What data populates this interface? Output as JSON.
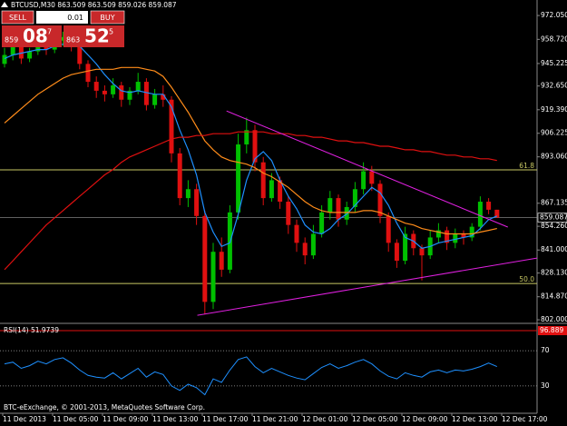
{
  "chart_data": {
    "type": "candlestick",
    "title": "BTCUSD,M30 863.509 863.509 859.026 859.087",
    "trade_panel": {
      "sell": "SELL",
      "buy": "BUY",
      "lot": "0.01",
      "bid": {
        "big": "859",
        "pips": "08",
        "frac": "7"
      },
      "ask": {
        "big": "863",
        "pips": "52",
        "frac": "5"
      }
    },
    "copyright": "BTC-eExchange, © 2001-2013, MetaQuotes Software Corp.",
    "ylim": [
      800,
      979.7
    ],
    "yticks": [
      {
        "value": 972.05,
        "label": "972.050"
      },
      {
        "value": 958.72,
        "label": "958.720"
      },
      945.225,
      {
        "value": 932.65,
        "label": "932.650"
      },
      {
        "value": 919.39,
        "label": "919.390"
      },
      906.225,
      {
        "value": 893.06,
        "label": "893.060"
      },
      867.135,
      {
        "value": 854.26,
        "label": "854.260"
      },
      {
        "value": 841.0,
        "label": "841.000"
      },
      {
        "value": 828.13,
        "label": "828.130"
      },
      {
        "value": 814.87,
        "label": "814.870"
      },
      {
        "value": 802.0,
        "label": "802.000"
      }
    ],
    "x_labels": [
      "11 Dec 2013",
      "11 Dec 05:00",
      "11 Dec 09:00",
      "11 Dec 13:00",
      "11 Dec 17:00",
      "11 Dec 21:00",
      "12 Dec 01:00",
      "12 Dec 05:00",
      "12 Dec 09:00",
      "12 Dec 13:00",
      "12 Dec 17:00"
    ],
    "bull_color": "#00c000",
    "bear_color": "#e01010",
    "candles": [
      [
        945,
        954,
        943,
        950
      ],
      [
        950,
        958,
        947,
        955
      ],
      [
        955,
        957,
        945,
        948
      ],
      [
        948,
        954,
        946,
        952
      ],
      [
        952,
        959,
        950,
        956
      ],
      [
        956,
        958,
        950,
        953
      ],
      [
        953,
        961,
        951,
        958
      ],
      [
        958,
        963,
        955,
        960
      ],
      [
        960,
        962,
        952,
        955
      ],
      [
        955,
        957,
        942,
        945
      ],
      [
        945,
        947,
        932,
        935
      ],
      [
        935,
        938,
        926,
        930
      ],
      [
        930,
        933,
        924,
        928
      ],
      [
        928,
        937,
        926,
        933
      ],
      [
        933,
        935,
        921,
        925
      ],
      [
        925,
        932,
        922,
        930
      ],
      [
        930,
        940,
        928,
        935
      ],
      [
        935,
        937,
        919,
        922
      ],
      [
        922,
        931,
        920,
        928
      ],
      [
        928,
        933,
        921,
        925
      ],
      [
        925,
        927,
        890,
        895
      ],
      [
        895,
        898,
        866,
        870
      ],
      [
        870,
        880,
        865,
        875
      ],
      [
        875,
        878,
        855,
        860
      ],
      [
        860,
        863,
        805,
        812
      ],
      [
        812,
        845,
        808,
        840
      ],
      [
        840,
        848,
        826,
        830
      ],
      [
        830,
        866,
        828,
        862
      ],
      [
        862,
        906,
        858,
        900
      ],
      [
        900,
        915,
        895,
        908
      ],
      [
        908,
        911,
        885,
        890
      ],
      [
        890,
        893,
        866,
        870
      ],
      [
        870,
        884,
        868,
        880
      ],
      [
        880,
        882,
        864,
        868
      ],
      [
        868,
        871,
        850,
        855
      ],
      [
        855,
        858,
        840,
        845
      ],
      [
        845,
        848,
        833,
        838
      ],
      [
        838,
        855,
        836,
        850
      ],
      [
        850,
        866,
        848,
        862
      ],
      [
        862,
        874,
        858,
        870
      ],
      [
        870,
        872,
        854,
        858
      ],
      [
        858,
        868,
        855,
        865
      ],
      [
        865,
        879,
        862,
        875
      ],
      [
        875,
        890,
        872,
        885
      ],
      [
        885,
        888,
        874,
        878
      ],
      [
        878,
        880,
        856,
        860
      ],
      [
        860,
        862,
        840,
        845
      ],
      [
        845,
        847,
        831,
        835
      ],
      [
        835,
        854,
        833,
        850
      ],
      [
        850,
        852,
        838,
        842
      ],
      [
        842,
        844,
        824,
        838
      ],
      [
        838,
        852,
        836,
        848
      ],
      [
        848,
        856,
        845,
        852
      ],
      [
        852,
        854,
        841,
        845
      ],
      [
        845,
        853,
        842,
        850
      ],
      [
        850,
        852,
        844,
        848
      ],
      [
        848,
        856,
        846,
        854
      ],
      [
        854,
        871,
        852,
        868
      ],
      [
        868,
        870,
        861,
        863.509
      ],
      [
        863.509,
        863.509,
        859.026,
        859.087
      ]
    ],
    "ma_lines": [
      {
        "color": "#1e90ff",
        "values": [
          948,
          950,
          951,
          952,
          953,
          953,
          955,
          956,
          956,
          955,
          950,
          945,
          939,
          934,
          930,
          929,
          930,
          929,
          928,
          928,
          921,
          908,
          897,
          883,
          862,
          851,
          843,
          845,
          861,
          880,
          892,
          896,
          891,
          880,
          871,
          864,
          855,
          851,
          850,
          853,
          858,
          861,
          866,
          871,
          876,
          873,
          866,
          856,
          848,
          846,
          842,
          843,
          845,
          846,
          847,
          848,
          849,
          853,
          858,
          860
        ]
      },
      {
        "color": "#ff8c1a",
        "values": [
          912,
          916,
          920,
          924,
          928,
          931,
          934,
          937,
          939,
          940,
          941,
          942,
          942,
          942,
          943,
          943,
          943,
          942,
          941,
          938,
          932,
          925,
          918,
          910,
          902,
          897,
          893,
          891,
          890,
          889,
          887,
          884,
          882,
          879,
          876,
          872,
          868,
          865,
          863,
          862,
          862,
          862,
          862,
          863,
          863,
          862,
          860,
          858,
          856,
          855,
          853,
          852,
          851,
          850,
          850,
          850,
          850,
          851,
          852,
          853
        ]
      },
      {
        "color": "#e01010",
        "values": [
          830,
          835,
          840,
          845,
          850,
          855,
          859,
          863,
          867,
          871,
          875,
          879,
          883,
          886,
          890,
          893,
          895,
          897,
          899,
          901,
          903,
          904,
          904,
          905,
          905,
          906,
          906,
          906,
          907,
          907,
          907,
          907,
          906,
          906,
          906,
          905,
          905,
          904,
          904,
          903,
          902,
          902,
          901,
          901,
          900,
          899,
          899,
          898,
          897,
          897,
          896,
          896,
          895,
          894,
          894,
          893,
          893,
          892,
          892,
          891
        ]
      }
    ],
    "trendlines": [
      {
        "color": "#e020e0",
        "start": [
          23.1,
          804.5
        ],
        "end": [
          63.8,
          836.5
        ]
      },
      {
        "color": "#e020e0",
        "start": [
          26.6,
          918.7
        ],
        "end": [
          60.3,
          853.8
        ]
      }
    ],
    "fibo_color": "#c8c864",
    "fibo_levels": [
      {
        "label": "61.8",
        "value": 885.8
      },
      {
        "label": "50.0",
        "value": 822.3
      }
    ],
    "current_price": 859.087,
    "rsi": {
      "label": "RSI(14) 51.9739",
      "color": "#1e90ff",
      "ylim": [
        0,
        100
      ],
      "yticks": [
        70,
        30
      ],
      "marker": 96.889,
      "marker_color": "#e01010",
      "values": [
        55,
        57,
        50,
        53,
        58,
        55,
        60,
        62,
        56,
        48,
        42,
        40,
        39,
        45,
        38,
        44,
        50,
        40,
        46,
        43,
        30,
        25,
        32,
        28,
        20,
        38,
        34,
        48,
        60,
        63,
        52,
        45,
        50,
        46,
        42,
        39,
        37,
        44,
        51,
        55,
        50,
        53,
        57,
        60,
        55,
        47,
        41,
        38,
        45,
        42,
        40,
        46,
        48,
        45,
        48,
        47,
        49,
        52,
        56,
        52
      ]
    }
  }
}
